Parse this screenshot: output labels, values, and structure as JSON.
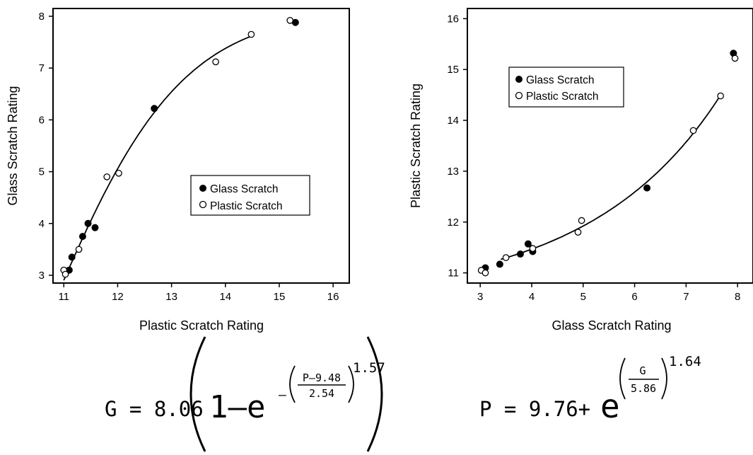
{
  "chart_data": [
    {
      "type": "scatter",
      "xlabel": "Plastic Scratch Rating",
      "ylabel": "Glass Scratch Rating",
      "xlim": [
        10.8,
        16.3
      ],
      "ylim": [
        2.85,
        8.15
      ],
      "xticks": [
        11,
        12,
        13,
        14,
        15,
        16
      ],
      "yticks": [
        3,
        4,
        5,
        6,
        7,
        8
      ],
      "legend_position": "center-right",
      "series": [
        {
          "name": "Glass Scratch",
          "marker": "filled",
          "x": [
            11.1,
            11.15,
            11.35,
            11.45,
            11.58,
            12.68,
            15.3
          ],
          "y": [
            3.1,
            3.35,
            3.75,
            4.0,
            3.92,
            6.22,
            7.88
          ]
        },
        {
          "name": "Plastic Scratch",
          "marker": "open",
          "x": [
            11.0,
            11.03,
            11.28,
            11.8,
            12.02,
            13.82,
            14.48,
            15.2
          ],
          "y": [
            3.1,
            3.02,
            3.5,
            4.9,
            4.97,
            7.12,
            7.65,
            7.92
          ]
        }
      ],
      "fit": {
        "a": 8.06,
        "b": 9.48,
        "c": 2.54,
        "k": 1.57,
        "x_range": [
          11.0,
          14.5
        ]
      },
      "equation": {
        "lhs": "G = 8.06",
        "one_minus_e": "1–e",
        "minus": "–",
        "numerator": "P–9.48",
        "denominator": "2.54",
        "exponent": "1.57"
      }
    },
    {
      "type": "scatter",
      "xlabel": "Glass Scratch Rating",
      "ylabel": "Plastic Scratch Rating",
      "xlim": [
        2.75,
        8.3
      ],
      "ylim": [
        10.8,
        16.2
      ],
      "xticks": [
        3,
        4,
        5,
        6,
        7,
        8
      ],
      "yticks": [
        11,
        12,
        13,
        14,
        15,
        16
      ],
      "legend_position": "top-left",
      "series": [
        {
          "name": "Glass Scratch",
          "marker": "filled",
          "x": [
            3.1,
            3.38,
            3.78,
            3.93,
            4.02,
            6.24,
            7.92
          ],
          "y": [
            11.1,
            11.17,
            11.37,
            11.57,
            11.42,
            12.67,
            15.32
          ]
        },
        {
          "name": "Plastic Scratch",
          "marker": "open",
          "x": [
            3.02,
            3.1,
            3.5,
            4.02,
            4.9,
            4.97,
            7.14,
            7.67,
            7.95
          ],
          "y": [
            11.05,
            11.0,
            11.3,
            11.48,
            11.8,
            12.03,
            13.8,
            14.48,
            15.22
          ]
        }
      ],
      "fit": {
        "base": 9.76,
        "d": 5.86,
        "k": 1.64,
        "x_range": [
          3.4,
          7.68
        ]
      },
      "equation": {
        "lhs": "P = 9.76+",
        "e": "e",
        "numerator": "G",
        "denominator": "5.86",
        "exponent": "1.64"
      }
    }
  ]
}
